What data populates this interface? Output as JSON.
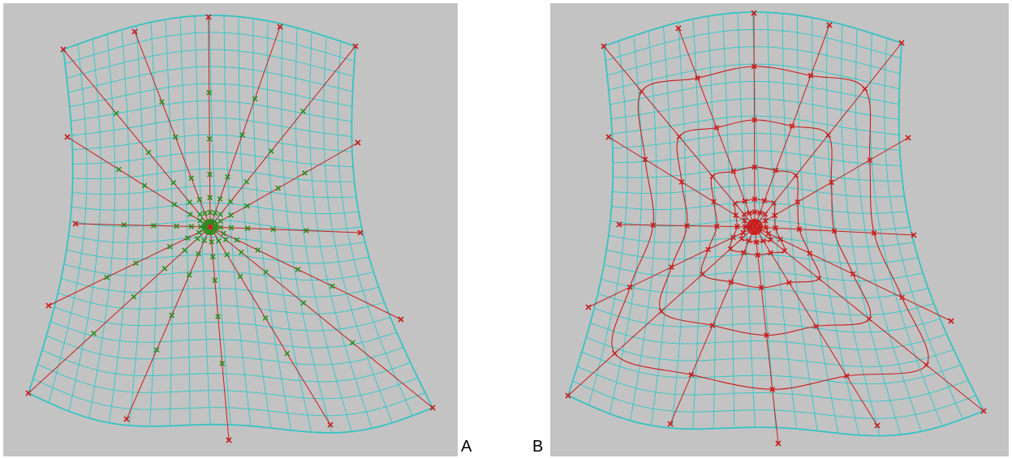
{
  "figure": {
    "panel_a_label": "A",
    "panel_b_label": "B"
  },
  "colors": {
    "background": "#c3c3c3",
    "grid_line": "#2fc8c8",
    "outline": "#36c3c3",
    "spoke_line": "#c81e1e",
    "marker_green": "#2e8b1e",
    "marker_red": "#c81e1e"
  },
  "panels": [
    {
      "id": "A",
      "marker_color": "green",
      "description_markers": "green-x-markers-along-radial-spokes"
    },
    {
      "id": "B",
      "marker_color": "red",
      "description_markers": "red-x-markers-with-concentric-contours"
    }
  ]
}
